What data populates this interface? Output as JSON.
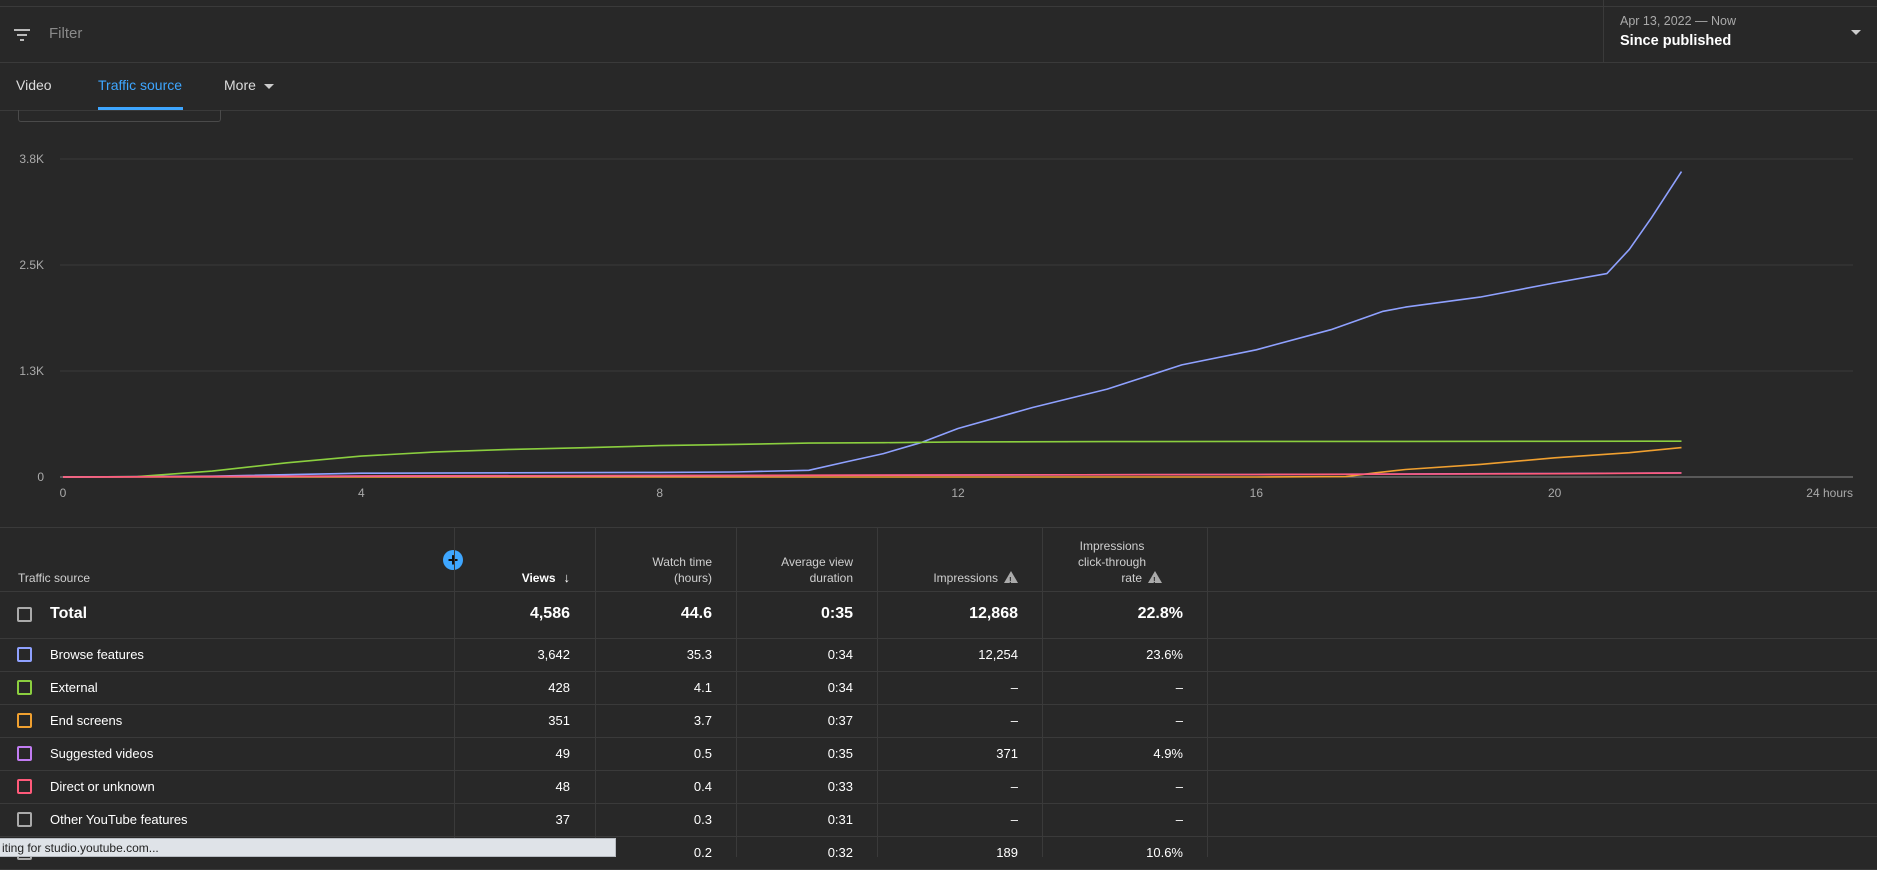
{
  "filter": {
    "placeholder": "Filter"
  },
  "date": {
    "range": "Apr 13, 2022 — Now",
    "label": "Since published"
  },
  "tabs": [
    {
      "label": "Video"
    },
    {
      "label": "Traffic source",
      "active": true
    },
    {
      "label": "More"
    }
  ],
  "chart_data": {
    "type": "line",
    "x_unit": "hours",
    "x_ticks": [
      "0",
      "4",
      "8",
      "12",
      "16",
      "20",
      "24 hours"
    ],
    "y_ticks": [
      "0",
      "1.3K",
      "2.5K",
      "3.8K"
    ],
    "xlim": [
      0,
      24
    ],
    "ylim": [
      0,
      3800
    ],
    "grid": true,
    "series": [
      {
        "name": "Browse features",
        "color": "#8fa1ff",
        "points": [
          [
            0,
            0
          ],
          [
            2,
            10
          ],
          [
            4,
            45
          ],
          [
            6,
            50
          ],
          [
            8,
            55
          ],
          [
            9,
            60
          ],
          [
            10,
            80
          ],
          [
            10.5,
            180
          ],
          [
            11,
            280
          ],
          [
            11.5,
            410
          ],
          [
            12,
            580
          ],
          [
            13,
            830
          ],
          [
            14,
            1050
          ],
          [
            15,
            1340
          ],
          [
            16,
            1520
          ],
          [
            17,
            1760
          ],
          [
            17.7,
            1980
          ],
          [
            18,
            2030
          ],
          [
            19,
            2150
          ],
          [
            20,
            2320
          ],
          [
            20.7,
            2430
          ],
          [
            21,
            2720
          ],
          [
            21.3,
            3100
          ],
          [
            21.7,
            3650
          ]
        ]
      },
      {
        "name": "External",
        "color": "#8bcf3f",
        "points": [
          [
            0,
            0
          ],
          [
            1,
            5
          ],
          [
            2,
            70
          ],
          [
            3,
            170
          ],
          [
            4,
            250
          ],
          [
            5,
            300
          ],
          [
            6,
            330
          ],
          [
            7,
            350
          ],
          [
            8,
            375
          ],
          [
            9,
            390
          ],
          [
            10,
            405
          ],
          [
            11,
            410
          ],
          [
            12,
            420
          ],
          [
            14,
            423
          ],
          [
            16,
            425
          ],
          [
            18,
            426
          ],
          [
            20,
            427
          ],
          [
            21.7,
            428
          ]
        ]
      },
      {
        "name": "End screens",
        "color": "#f0a030",
        "points": [
          [
            0,
            0
          ],
          [
            16,
            0
          ],
          [
            17.2,
            5
          ],
          [
            17.6,
            50
          ],
          [
            18,
            90
          ],
          [
            19,
            150
          ],
          [
            20,
            230
          ],
          [
            21,
            290
          ],
          [
            21.7,
            351
          ]
        ]
      },
      {
        "name": "Suggested videos",
        "color": "#c17cf2",
        "points": [
          [
            0,
            0
          ],
          [
            4,
            10
          ],
          [
            10,
            20
          ],
          [
            16,
            30
          ],
          [
            20,
            42
          ],
          [
            21.7,
            49
          ]
        ]
      },
      {
        "name": "Direct or unknown",
        "color": "#ff5a7a",
        "points": [
          [
            0,
            0
          ],
          [
            4,
            12
          ],
          [
            10,
            22
          ],
          [
            16,
            30
          ],
          [
            20,
            40
          ],
          [
            21.7,
            48
          ]
        ]
      }
    ]
  },
  "table": {
    "headers": {
      "traffic_source": "Traffic source",
      "views": "Views",
      "watch_time": [
        "Watch time",
        "(hours)"
      ],
      "avg_view_duration": [
        "Average view",
        "duration"
      ],
      "impressions": "Impressions",
      "ctr": [
        "Impressions",
        "click-through",
        "rate"
      ]
    },
    "total": {
      "label": "Total",
      "views": "4,586",
      "watch_time": "44.6",
      "avd": "0:35",
      "impressions": "12,868",
      "ctr": "22.8%"
    },
    "rows": [
      {
        "label": "Browse features",
        "color": "#8fa1ff",
        "views": "3,642",
        "watch_time": "35.3",
        "avd": "0:34",
        "impressions": "12,254",
        "ctr": "23.6%"
      },
      {
        "label": "External",
        "color": "#8bcf3f",
        "views": "428",
        "watch_time": "4.1",
        "avd": "0:34",
        "impressions": "–",
        "ctr": "–"
      },
      {
        "label": "End screens",
        "color": "#f0a030",
        "views": "351",
        "watch_time": "3.7",
        "avd": "0:37",
        "impressions": "–",
        "ctr": "–"
      },
      {
        "label": "Suggested videos",
        "color": "#c17cf2",
        "views": "49",
        "watch_time": "0.5",
        "avd": "0:35",
        "impressions": "371",
        "ctr": "4.9%"
      },
      {
        "label": "Direct or unknown",
        "color": "#ff5a7a",
        "views": "48",
        "watch_time": "0.4",
        "avd": "0:33",
        "impressions": "–",
        "ctr": "–"
      },
      {
        "label": "Other YouTube features",
        "color": "#aaaaaa",
        "views": "37",
        "watch_time": "0.3",
        "avd": "0:31",
        "impressions": "–",
        "ctr": "–"
      },
      {
        "label": "",
        "color": "#aaaaaa",
        "views": "",
        "watch_time": "0.2",
        "avd": "0:32",
        "impressions": "189",
        "ctr": "10.6%"
      }
    ]
  },
  "status": {
    "text": "iting for studio.youtube.com..."
  }
}
